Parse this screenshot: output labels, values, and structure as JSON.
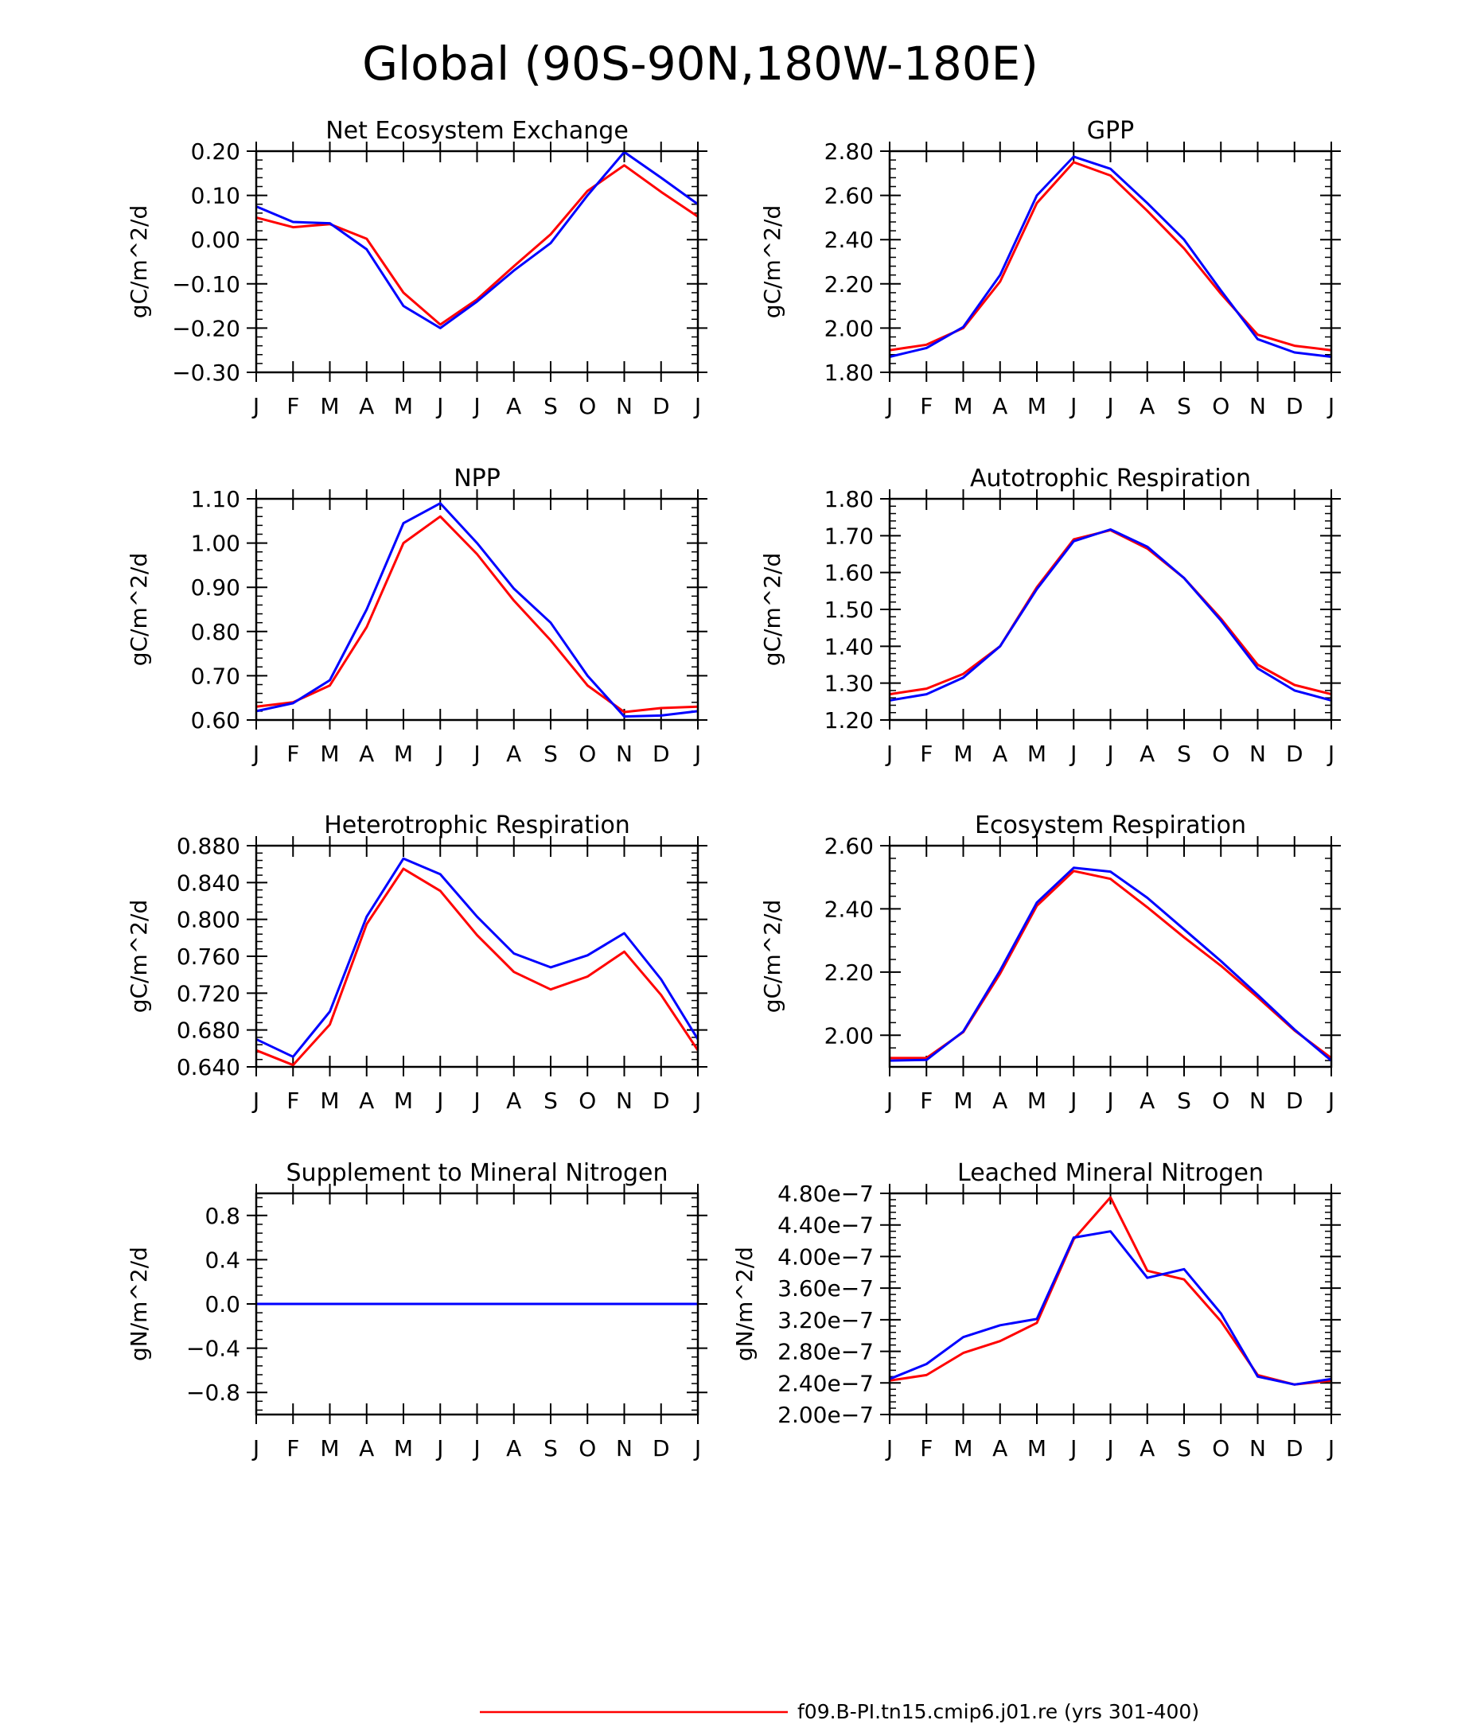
{
  "figure": {
    "title": "Global (90S-90N,180W-180E)",
    "legend": [
      {
        "label": "f09.B-PI.tn15.cmip6.j01.re (yrs 301-400)",
        "color": "#ff0000"
      }
    ]
  },
  "chart_data": [
    {
      "type": "line",
      "title": "Net Ecosystem Exchange",
      "ylabel": "gC/m^2/d",
      "categories": [
        "J",
        "F",
        "M",
        "A",
        "M",
        "J",
        "J",
        "A",
        "S",
        "O",
        "N",
        "D",
        "J"
      ],
      "ylim": [
        -0.3,
        0.2
      ],
      "yticks": [
        -0.3,
        -0.2,
        -0.1,
        0.0,
        0.1,
        0.2
      ],
      "ytick_labels": [
        "−0.30",
        "−0.20",
        "−0.10",
        "0.00",
        "0.10",
        "0.20"
      ],
      "series": [
        {
          "color": "#ff0000",
          "values": [
            0.05,
            0.028,
            0.035,
            0.002,
            -0.12,
            -0.192,
            -0.135,
            -0.06,
            0.012,
            0.11,
            0.168,
            0.108,
            0.052
          ]
        },
        {
          "color": "#0000ff",
          "values": [
            0.075,
            0.04,
            0.037,
            -0.022,
            -0.15,
            -0.2,
            -0.14,
            -0.07,
            -0.008,
            0.1,
            0.198,
            0.14,
            0.08
          ]
        }
      ]
    },
    {
      "type": "line",
      "title": "GPP",
      "ylabel": "gC/m^2/d",
      "categories": [
        "J",
        "F",
        "M",
        "A",
        "M",
        "J",
        "J",
        "A",
        "S",
        "O",
        "N",
        "D",
        "J"
      ],
      "ylim": [
        1.8,
        2.8
      ],
      "yticks": [
        1.8,
        2.0,
        2.2,
        2.4,
        2.6,
        2.8
      ],
      "ytick_labels": [
        "1.80",
        "2.00",
        "2.20",
        "2.40",
        "2.60",
        "2.80"
      ],
      "series": [
        {
          "color": "#ff0000",
          "values": [
            1.9,
            1.925,
            2.0,
            2.21,
            2.565,
            2.75,
            2.69,
            2.53,
            2.36,
            2.155,
            1.97,
            1.92,
            1.9
          ]
        },
        {
          "color": "#0000ff",
          "values": [
            1.87,
            1.91,
            2.005,
            2.24,
            2.6,
            2.775,
            2.72,
            2.565,
            2.4,
            2.17,
            1.95,
            1.89,
            1.87
          ]
        }
      ]
    },
    {
      "type": "line",
      "title": "NPP",
      "ylabel": "gC/m^2/d",
      "categories": [
        "J",
        "F",
        "M",
        "A",
        "M",
        "J",
        "J",
        "A",
        "S",
        "O",
        "N",
        "D",
        "J"
      ],
      "ylim": [
        0.6,
        1.1
      ],
      "yticks": [
        0.6,
        0.7,
        0.8,
        0.9,
        1.0,
        1.1
      ],
      "ytick_labels": [
        "0.60",
        "0.70",
        "0.80",
        "0.90",
        "1.00",
        "1.10"
      ],
      "series": [
        {
          "color": "#ff0000",
          "values": [
            0.63,
            0.64,
            0.678,
            0.81,
            1.0,
            1.06,
            0.975,
            0.87,
            0.78,
            0.678,
            0.618,
            0.627,
            0.63
          ]
        },
        {
          "color": "#0000ff",
          "values": [
            0.62,
            0.638,
            0.69,
            0.85,
            1.045,
            1.09,
            1.0,
            0.897,
            0.82,
            0.7,
            0.608,
            0.61,
            0.62
          ]
        }
      ]
    },
    {
      "type": "line",
      "title": "Autotrophic Respiration",
      "ylabel": "gC/m^2/d",
      "categories": [
        "J",
        "F",
        "M",
        "A",
        "M",
        "J",
        "J",
        "A",
        "S",
        "O",
        "N",
        "D",
        "J"
      ],
      "ylim": [
        1.2,
        1.8
      ],
      "yticks": [
        1.2,
        1.3,
        1.4,
        1.5,
        1.6,
        1.7,
        1.8
      ],
      "ytick_labels": [
        "1.20",
        "1.30",
        "1.40",
        "1.50",
        "1.60",
        "1.70",
        "1.80"
      ],
      "series": [
        {
          "color": "#ff0000",
          "values": [
            1.27,
            1.285,
            1.325,
            1.4,
            1.56,
            1.69,
            1.715,
            1.665,
            1.585,
            1.475,
            1.35,
            1.295,
            1.27
          ]
        },
        {
          "color": "#0000ff",
          "values": [
            1.253,
            1.27,
            1.315,
            1.4,
            1.555,
            1.685,
            1.717,
            1.67,
            1.585,
            1.47,
            1.34,
            1.28,
            1.253
          ]
        }
      ]
    },
    {
      "type": "line",
      "title": "Heterotrophic Respiration",
      "ylabel": "gC/m^2/d",
      "categories": [
        "J",
        "F",
        "M",
        "A",
        "M",
        "J",
        "J",
        "A",
        "S",
        "O",
        "N",
        "D",
        "J"
      ],
      "ylim": [
        0.64,
        0.88
      ],
      "yticks": [
        0.64,
        0.68,
        0.72,
        0.76,
        0.8,
        0.84,
        0.88
      ],
      "ytick_labels": [
        "0.640",
        "0.680",
        "0.720",
        "0.760",
        "0.800",
        "0.840",
        "0.880"
      ],
      "series": [
        {
          "color": "#ff0000",
          "values": [
            0.658,
            0.642,
            0.686,
            0.795,
            0.855,
            0.831,
            0.783,
            0.743,
            0.724,
            0.738,
            0.765,
            0.718,
            0.658
          ]
        },
        {
          "color": "#0000ff",
          "values": [
            0.67,
            0.651,
            0.7,
            0.803,
            0.866,
            0.849,
            0.803,
            0.763,
            0.748,
            0.761,
            0.785,
            0.735,
            0.67
          ]
        }
      ]
    },
    {
      "type": "line",
      "title": "Ecosystem Respiration",
      "ylabel": "gC/m^2/d",
      "categories": [
        "J",
        "F",
        "M",
        "A",
        "M",
        "J",
        "J",
        "A",
        "S",
        "O",
        "N",
        "D",
        "J"
      ],
      "ylim": [
        1.9,
        2.6
      ],
      "yticks": [
        2.0,
        2.2,
        2.4,
        2.6
      ],
      "ytick_labels": [
        "2.00",
        "2.20",
        "2.40",
        "2.60"
      ],
      "series": [
        {
          "color": "#ff0000",
          "values": [
            1.928,
            1.928,
            2.01,
            2.195,
            2.41,
            2.52,
            2.495,
            2.405,
            2.31,
            2.22,
            2.12,
            2.015,
            1.928
          ]
        },
        {
          "color": "#0000ff",
          "values": [
            1.92,
            1.922,
            2.012,
            2.205,
            2.42,
            2.53,
            2.518,
            2.435,
            2.335,
            2.235,
            2.128,
            2.018,
            1.92
          ]
        }
      ]
    },
    {
      "type": "line",
      "title": "Supplement to Mineral Nitrogen",
      "ylabel": "gN/m^2/d",
      "categories": [
        "J",
        "F",
        "M",
        "A",
        "M",
        "J",
        "J",
        "A",
        "S",
        "O",
        "N",
        "D",
        "J"
      ],
      "ylim": [
        -1.0,
        1.0
      ],
      "yticks": [
        -0.8,
        -0.4,
        0.0,
        0.4,
        0.8
      ],
      "ytick_labels": [
        "−0.8",
        "−0.4",
        "0.0",
        "0.4",
        "0.8"
      ],
      "series": [
        {
          "color": "#ff0000",
          "values": [
            0,
            0,
            0,
            0,
            0,
            0,
            0,
            0,
            0,
            0,
            0,
            0,
            0
          ]
        },
        {
          "color": "#0000ff",
          "values": [
            0,
            0,
            0,
            0,
            0,
            0,
            0,
            0,
            0,
            0,
            0,
            0,
            0
          ]
        }
      ]
    },
    {
      "type": "line",
      "title": "Leached Mineral Nitrogen",
      "ylabel": "gN/m^2/d",
      "categories": [
        "J",
        "F",
        "M",
        "A",
        "M",
        "J",
        "J",
        "A",
        "S",
        "O",
        "N",
        "D",
        "J"
      ],
      "ylim": [
        2e-07,
        4.8e-07
      ],
      "yticks": [
        2e-07,
        2.4e-07,
        2.8e-07,
        3.2e-07,
        3.6e-07,
        4e-07,
        4.4e-07,
        4.8e-07
      ],
      "ytick_labels": [
        "2.00e−7",
        "2.40e−7",
        "2.80e−7",
        "3.20e−7",
        "3.60e−7",
        "4.00e−7",
        "4.40e−7",
        "4.80e−7"
      ],
      "series": [
        {
          "color": "#ff0000",
          "values": [
            2.43e-07,
            2.5e-07,
            2.78e-07,
            2.93e-07,
            3.16e-07,
            4.22e-07,
            4.75e-07,
            3.82e-07,
            3.71e-07,
            3.18e-07,
            2.5e-07,
            2.38e-07,
            2.43e-07
          ]
        },
        {
          "color": "#0000ff",
          "values": [
            2.45e-07,
            2.64e-07,
            2.98e-07,
            3.13e-07,
            3.21e-07,
            4.24e-07,
            4.32e-07,
            3.73e-07,
            3.84e-07,
            3.28e-07,
            2.48e-07,
            2.38e-07,
            2.45e-07
          ]
        }
      ]
    }
  ]
}
